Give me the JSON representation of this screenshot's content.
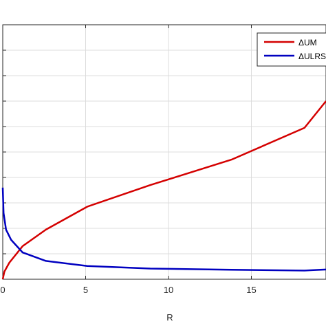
{
  "chart_data": {
    "type": "line",
    "xlabel": "R",
    "ylabel": "",
    "title": "",
    "xlim": [
      0,
      19.5
    ],
    "ylim": [
      0,
      10
    ],
    "xticks": [
      0,
      5,
      10,
      15
    ],
    "xtick_labels": [
      "0",
      "5",
      "10",
      "15"
    ],
    "yticks": [
      0,
      1,
      2,
      3,
      4,
      5,
      6,
      7,
      8,
      9,
      10
    ],
    "grid": true,
    "legend_position": "top-right",
    "series": [
      {
        "name": "ΔUM",
        "color": "#d40000",
        "x": [
          0,
          0.1,
          0.4,
          1.2,
          2.6,
          5.1,
          8.9,
          13.8,
          18.2,
          19.5
        ],
        "y": [
          0,
          0.3,
          0.65,
          1.3,
          1.95,
          2.85,
          3.7,
          4.7,
          5.95,
          7.0
        ]
      },
      {
        "name": "ΔULRS",
        "color": "#0000c0",
        "x": [
          0,
          0.05,
          0.2,
          0.5,
          1.2,
          2.6,
          5.1,
          8.9,
          13.8,
          18.2,
          19.5
        ],
        "y": [
          3.6,
          2.6,
          1.95,
          1.55,
          1.05,
          0.72,
          0.52,
          0.42,
          0.37,
          0.34,
          0.38
        ]
      }
    ]
  }
}
